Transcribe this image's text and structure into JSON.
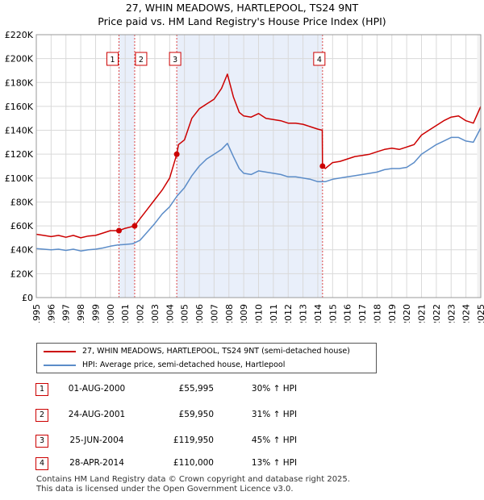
{
  "title_line1": "27, WHIN MEADOWS, HARTLEPOOL, TS24 9NT",
  "title_line2": "Price paid vs. HM Land Registry's House Price Index (HPI)",
  "chart_data": {
    "type": "line",
    "title": "27, WHIN MEADOWS, HARTLEPOOL, TS24 9NT — Price paid vs. HM Land Registry's House Price Index (HPI)",
    "xlim": [
      1995,
      2025
    ],
    "ylim": [
      0,
      220000
    ],
    "y_ticks": [
      0,
      20000,
      40000,
      60000,
      80000,
      100000,
      120000,
      140000,
      160000,
      180000,
      200000,
      220000
    ],
    "y_tick_labels": [
      "£0",
      "£20K",
      "£40K",
      "£60K",
      "£80K",
      "£100K",
      "£120K",
      "£140K",
      "£160K",
      "£180K",
      "£200K",
      "£220K"
    ],
    "x_ticks": [
      1995,
      1996,
      1997,
      1998,
      1999,
      2000,
      2001,
      2002,
      2003,
      2004,
      2005,
      2006,
      2007,
      2008,
      2009,
      2010,
      2011,
      2012,
      2013,
      2014,
      2015,
      2016,
      2017,
      2018,
      2019,
      2020,
      2021,
      2022,
      2023,
      2024,
      2025
    ],
    "x_tick_labels": [
      "1995",
      "1996",
      "1997",
      "1998",
      "1999",
      "2000",
      "2001",
      "2002",
      "2003",
      "2004",
      "2005",
      "2006",
      "2007",
      "2008",
      "2009",
      "2010",
      "2011",
      "2012",
      "2013",
      "2014",
      "2015",
      "2016",
      "2017",
      "2018",
      "2019",
      "2020",
      "2021",
      "2022",
      "2023",
      "2024",
      "2025"
    ],
    "series": [
      {
        "name": "27, WHIN MEADOWS, HARTLEPOOL, TS24 9NT (semi-detached house)",
        "color": "#cc0000",
        "x": [
          1995.0,
          1995.5,
          1996.0,
          1996.5,
          1997.0,
          1997.5,
          1998.0,
          1998.5,
          1999.0,
          1999.5,
          2000.0,
          2000.58,
          2001.0,
          2001.64,
          2002.0,
          2002.5,
          2003.0,
          2003.5,
          2004.0,
          2004.48,
          2004.6,
          2005.0,
          2005.5,
          2006.0,
          2006.5,
          2007.0,
          2007.5,
          2007.9,
          2008.3,
          2008.7,
          2009.0,
          2009.5,
          2010.0,
          2010.5,
          2011.0,
          2011.5,
          2012.0,
          2012.5,
          2013.0,
          2013.5,
          2014.0,
          2014.3,
          2014.32,
          2014.5,
          2015.0,
          2015.5,
          2016.0,
          2016.5,
          2017.0,
          2017.5,
          2018.0,
          2018.5,
          2019.0,
          2019.5,
          2020.0,
          2020.5,
          2021.0,
          2021.5,
          2022.0,
          2022.5,
          2023.0,
          2023.5,
          2024.0,
          2024.5,
          2025.0
        ],
        "values": [
          53000,
          52000,
          51000,
          52000,
          50500,
          52000,
          50000,
          51500,
          52000,
          54000,
          56000,
          55995,
          58000,
          59950,
          66000,
          74000,
          82000,
          90000,
          100000,
          119950,
          128000,
          132000,
          150000,
          158000,
          162000,
          166000,
          175000,
          187000,
          168000,
          155000,
          152000,
          151000,
          154000,
          150000,
          149000,
          148000,
          146000,
          146000,
          145000,
          143000,
          141000,
          140000,
          110000,
          108000,
          113000,
          114000,
          116000,
          118000,
          119000,
          120000,
          122000,
          124000,
          125000,
          124000,
          126000,
          128000,
          136000,
          140000,
          144000,
          148000,
          151000,
          152000,
          148000,
          146000,
          160000
        ]
      },
      {
        "name": "HPI: Average price, semi-detached house, Hartlepool",
        "color": "#5b8cc8",
        "x": [
          1995.0,
          1995.5,
          1996.0,
          1996.5,
          1997.0,
          1997.5,
          1998.0,
          1998.5,
          1999.0,
          1999.5,
          2000.0,
          2000.5,
          2001.0,
          2001.5,
          2002.0,
          2002.5,
          2003.0,
          2003.5,
          2004.0,
          2004.5,
          2005.0,
          2005.5,
          2006.0,
          2006.5,
          2007.0,
          2007.5,
          2007.9,
          2008.3,
          2008.7,
          2009.0,
          2009.5,
          2010.0,
          2010.5,
          2011.0,
          2011.5,
          2012.0,
          2012.5,
          2013.0,
          2013.5,
          2014.0,
          2014.5,
          2015.0,
          2015.5,
          2016.0,
          2016.5,
          2017.0,
          2017.5,
          2018.0,
          2018.5,
          2019.0,
          2019.5,
          2020.0,
          2020.5,
          2021.0,
          2021.5,
          2022.0,
          2022.5,
          2023.0,
          2023.5,
          2024.0,
          2024.5,
          2025.0
        ],
        "values": [
          41000,
          40500,
          40000,
          40500,
          39500,
          40500,
          39000,
          40000,
          40500,
          41500,
          43000,
          44000,
          44500,
          45000,
          48000,
          55000,
          62000,
          70000,
          76000,
          85000,
          92000,
          102000,
          110000,
          116000,
          120000,
          124000,
          129000,
          118000,
          108000,
          104000,
          103000,
          106000,
          105000,
          104000,
          103000,
          101000,
          101000,
          100000,
          99000,
          97000,
          97000,
          99000,
          100000,
          101000,
          102000,
          103000,
          104000,
          105000,
          107000,
          108000,
          108000,
          109000,
          113000,
          120000,
          124000,
          128000,
          131000,
          134000,
          134000,
          131000,
          130000,
          142000
        ]
      }
    ],
    "transactions": [
      {
        "num": "1",
        "x": 2000.58,
        "y": 55995
      },
      {
        "num": "2",
        "x": 2001.64,
        "y": 59950
      },
      {
        "num": "3",
        "x": 2004.48,
        "y": 119950
      },
      {
        "num": "4",
        "x": 2014.32,
        "y": 110000
      }
    ],
    "shaded_spans": [
      [
        2000.58,
        2001.64
      ],
      [
        2004.48,
        2014.32
      ]
    ],
    "grid": true,
    "legend": "below"
  },
  "legend_items": [
    {
      "label": "27, WHIN MEADOWS, HARTLEPOOL, TS24 9NT (semi-detached house)",
      "color": "#cc0000"
    },
    {
      "label": "HPI: Average price, semi-detached house, Hartlepool",
      "color": "#5b8cc8"
    }
  ],
  "table_rows": [
    {
      "num": "1",
      "date": "01-AUG-2000",
      "price": "£55,995",
      "hpi": "30% ↑ HPI"
    },
    {
      "num": "2",
      "date": "24-AUG-2001",
      "price": "£59,950",
      "hpi": "31% ↑ HPI"
    },
    {
      "num": "3",
      "date": "25-JUN-2004",
      "price": "£119,950",
      "hpi": "45% ↑ HPI"
    },
    {
      "num": "4",
      "date": "28-APR-2014",
      "price": "£110,000",
      "hpi": "13% ↑ HPI"
    }
  ],
  "footer_line1": "Contains HM Land Registry data © Crown copyright and database right 2025.",
  "footer_line2": "This data is licensed under the Open Government Licence v3.0."
}
